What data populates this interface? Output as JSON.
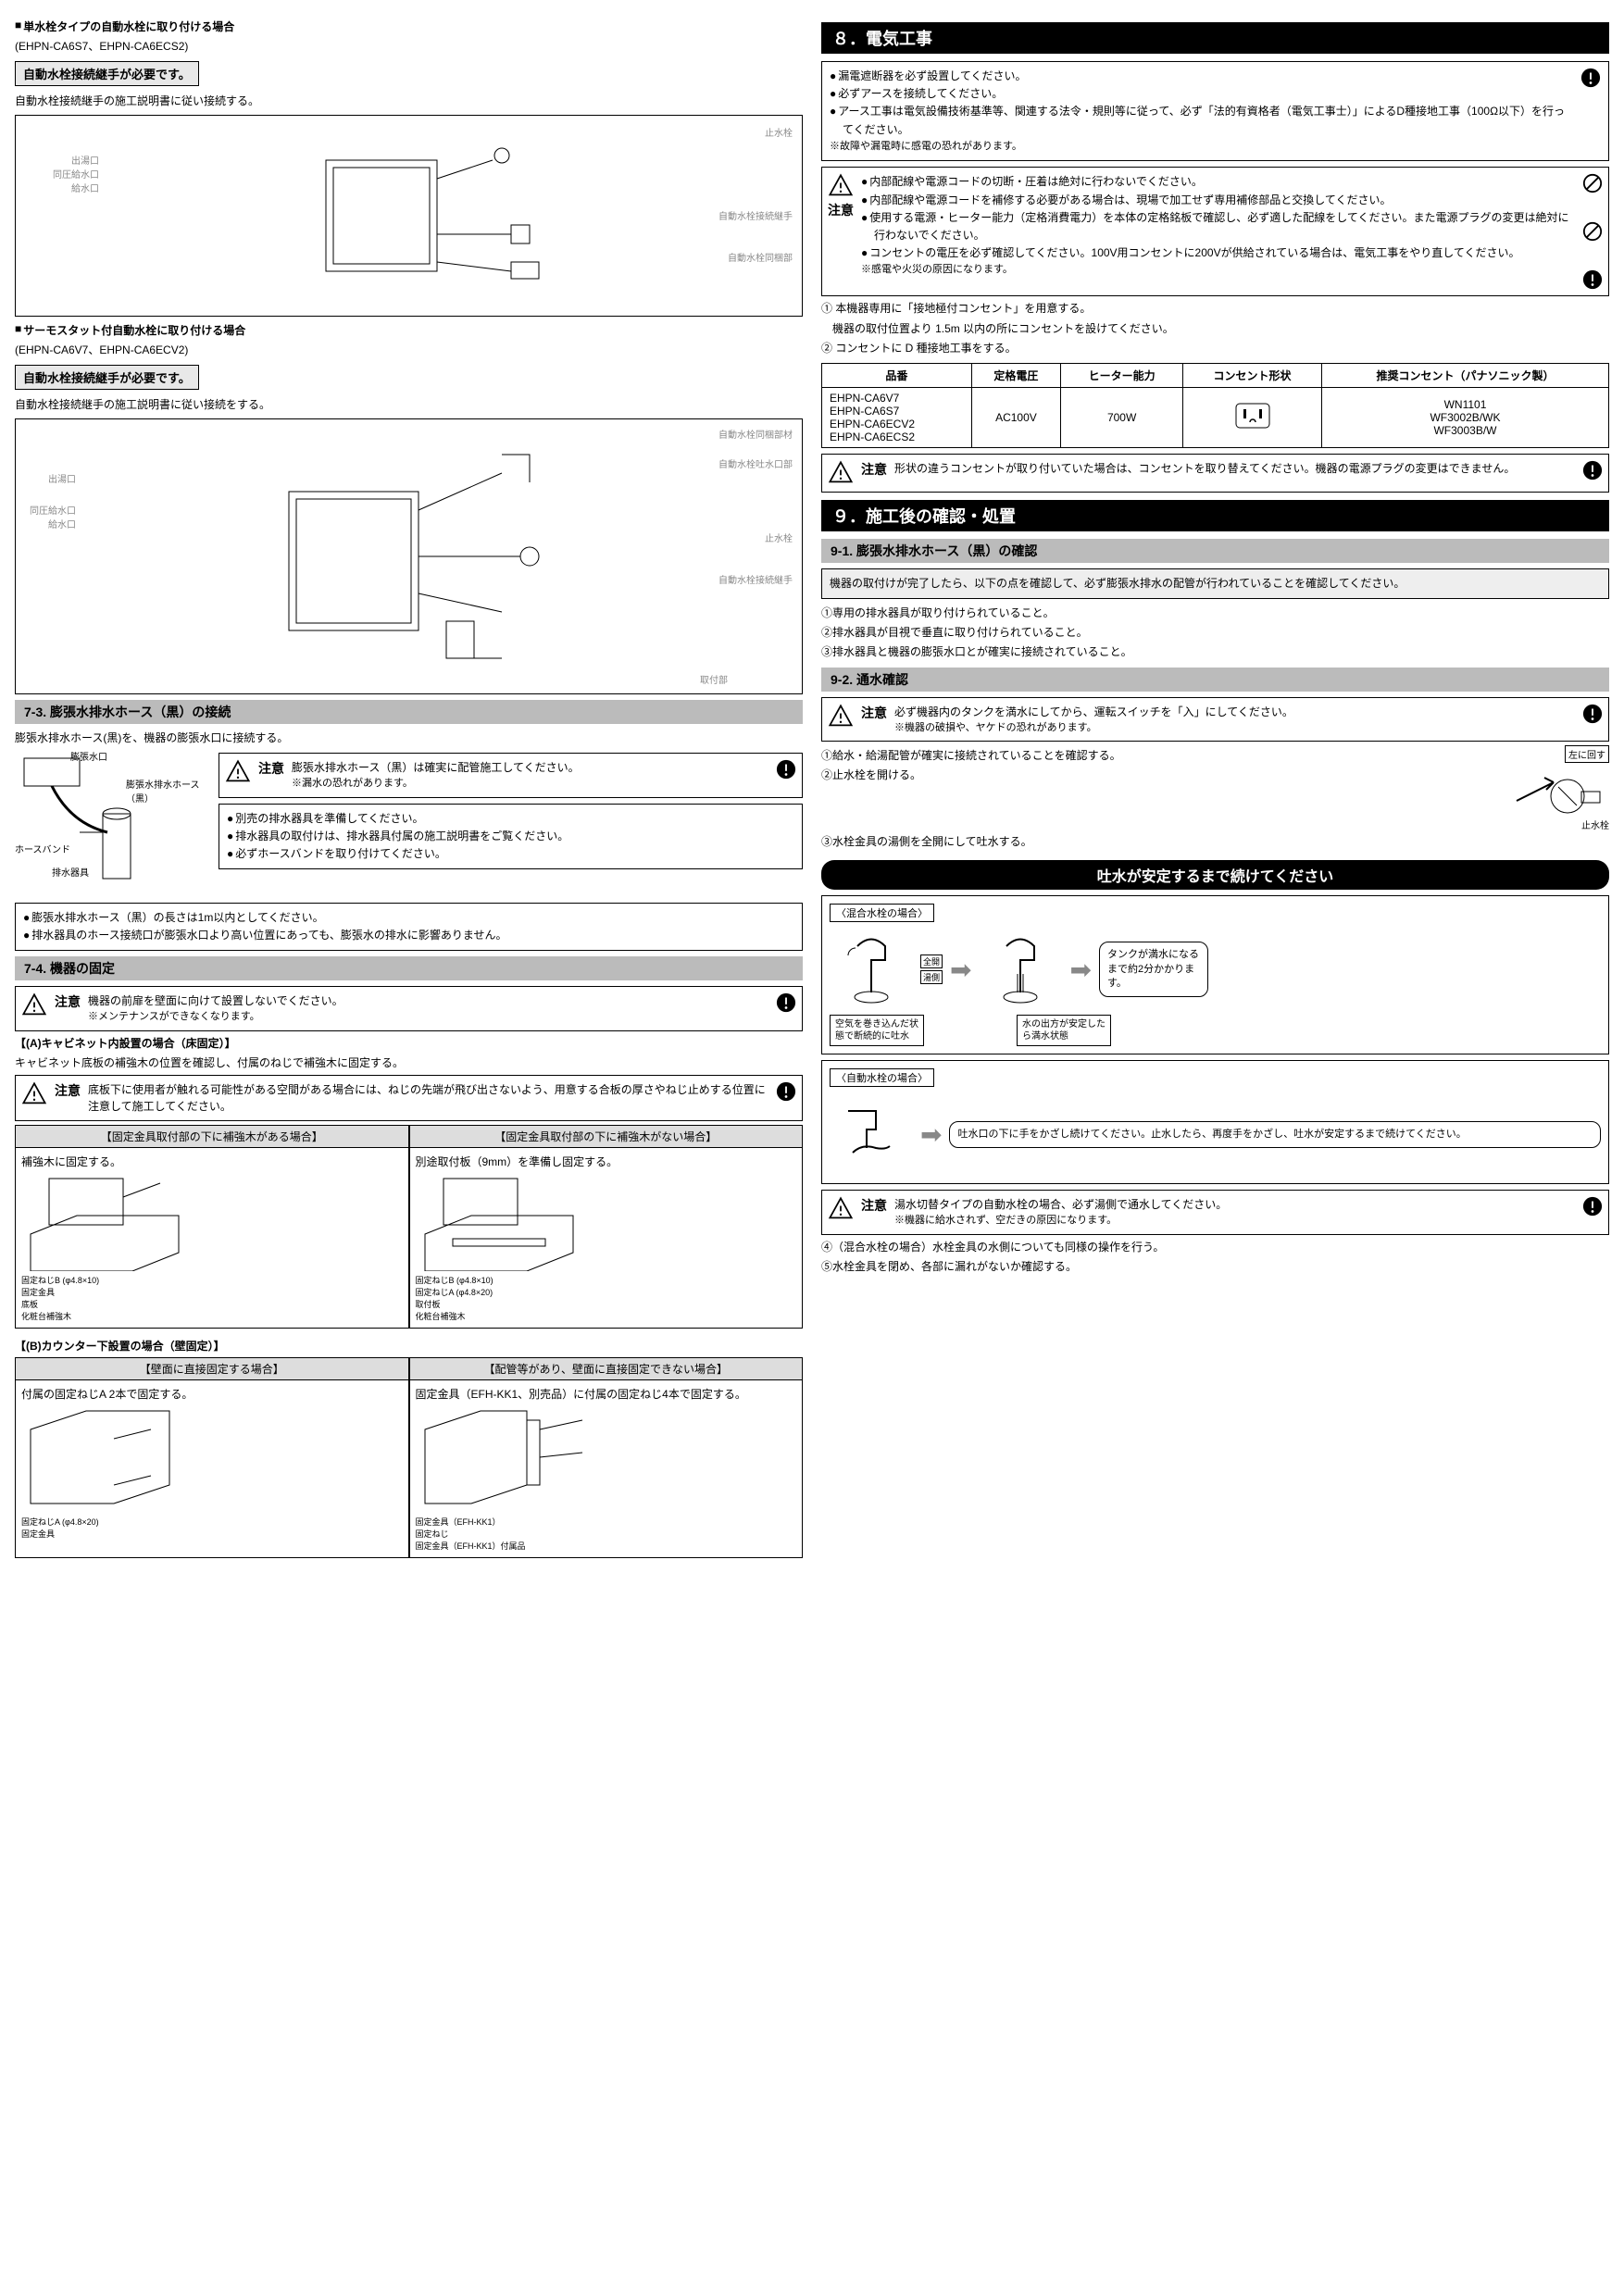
{
  "left": {
    "faucet1_heading": "単水栓タイプの自動水栓に取り付ける場合",
    "faucet1_models": "(EHPN-CA6S7、EHPN-CA6ECS2)",
    "faucet1_req": "自動水栓接続継手が必要です。",
    "faucet1_text": "自動水栓接続継手の施工説明書に従い接続する。",
    "faucet1_labels": {
      "outlet": "出湯口",
      "inlet_both": "同圧給水口",
      "inlet": "給水口",
      "stop": "止水栓",
      "joint": "自動水栓接続継手",
      "faucet_parts": "自動水栓同梱部"
    },
    "faucet2_heading": "サーモスタット付自動水栓に取り付ける場合",
    "faucet2_models": "(EHPN-CA6V7、EHPN-CA6ECV2)",
    "faucet2_req": "自動水栓接続継手が必要です。",
    "faucet2_text": "自動水栓接続継手の施工説明書に従い接続をする。",
    "faucet2_labels": {
      "bundle": "自動水栓同梱部材",
      "hw_outlet": "自動水栓吐水口部",
      "stop": "止水栓",
      "joint": "自動水栓接続継手",
      "outlet": "出湯口",
      "inlet_both": "同圧給水口",
      "inlet": "給水口",
      "attachment": "取付部"
    },
    "sec73_title": "7-3. 膨張水排水ホース（黒）の接続",
    "sec73_text": "膨張水排水ホース(黒)を、機器の膨張水口に接続する。",
    "sec73_labels": {
      "port": "膨張水口",
      "hose": "膨張水排水ホース（黒）",
      "band": "ホースバンド",
      "drain": "排水器具"
    },
    "sec73_caution": "膨張水排水ホース（黒）は確実に配管施工してください。",
    "sec73_caution_sub": "※漏水の恐れがあります。",
    "sec73_bullets": [
      "別売の排水器具を準備してください。",
      "排水器具の取付けは、排水器具付属の施工説明書をご覧ください。",
      "必ずホースバンドを取り付けてください。"
    ],
    "sec73_notes": [
      "膨張水排水ホース（黒）の長さは1m以内としてください。",
      "排水器具のホース接続口が膨張水口より高い位置にあっても、膨張水の排水に影響ありません。"
    ],
    "sec74_title": "7-4. 機器の固定",
    "sec74_caution": "機器の前扉を壁面に向けて設置しないでください。",
    "sec74_caution_sub": "※メンテナンスができなくなります。",
    "caseA_title": "【(A)キャビネット内設置の場合（床固定）】",
    "caseA_text": "キャビネット底板の補強木の位置を確認し、付属のねじで補強木に固定する。",
    "caseA_caution": "底板下に使用者が触れる可能性がある空間がある場合には、ねじの先端が飛び出さないよう、用意する合板の厚さやねじ止めする位置に注意して施工してください。",
    "caseA_left_head": "【固定金具取付部の下に補強木がある場合】",
    "caseA_left_body": "補強木に固定する。",
    "caseA_right_head": "【固定金具取付部の下に補強木がない場合】",
    "caseA_right_body": "別途取付板（9mm）を準備し固定する。",
    "caseA_labels": {
      "screwB": "固定ねじB (φ4.8×10)",
      "bracket": "固定金具",
      "base": "底板",
      "beam": "化粧台補強木",
      "screwA": "固定ねじA (φ4.8×20)",
      "plate": "取付板"
    },
    "caseB_title": "【(B)カウンター下設置の場合（壁固定）】",
    "caseB_left_head": "【壁面に直接固定する場合】",
    "caseB_left_body": "付属の固定ねじA 2本で固定する。",
    "caseB_right_head": "【配管等があり、壁面に直接固定できない場合】",
    "caseB_right_body": "固定金具（EFH-KK1、別売品）に付属の固定ねじ4本で固定する。",
    "caseB_labels": {
      "screwA": "固定ねじA (φ4.8×20)",
      "bracket": "固定金具",
      "kk1": "固定金具（EFH-KK1）",
      "screw": "固定ねじ",
      "kk1p": "固定金具（EFH-KK1）付属品"
    }
  },
  "right": {
    "sec8_title": "８．電気工事",
    "sec8_top_bullets": [
      "漏電遮断器を必ず設置してください。",
      "必ずアースを接続してください。",
      "アース工事は電気設備技術基準等、関連する法令・規則等に従って、必ず「法的有資格者（電気工事士）」によるD種接地工事（100Ω以下）を行ってください。"
    ],
    "sec8_top_sub": "※故障や漏電時に感電の恐れがあります。",
    "sec8_caution_bullets": [
      "内部配線や電源コードの切断・圧着は絶対に行わないでください。",
      "内部配線や電源コードを補修する必要がある場合は、現場で加工せず専用補修部品と交換してください。",
      "使用する電源・ヒーター能力（定格消費電力）を本体の定格銘板で確認し、必ず適した配線をしてください。また電源プラグの変更は絶対に行わないでください。",
      "コンセントの電圧を必ず確認してください。100V用コンセントに200Vが供給されている場合は、電気工事をやり直してください。"
    ],
    "sec8_caution_sub": "※感電や火災の原因になります。",
    "sec8_notes": [
      "① 本機器専用に「接地極付コンセント」を用意する。",
      "　機器の取付位置より 1.5m 以内の所にコンセントを設けてください。",
      "② コンセントに D 種接地工事をする。"
    ],
    "table": {
      "headers": [
        "品番",
        "定格電圧",
        "ヒーター能力",
        "コンセント形状",
        "推奨コンセント（パナソニック製）"
      ],
      "models": [
        "EHPN-CA6V7",
        "EHPN-CA6S7",
        "EHPN-CA6ECV2",
        "EHPN-CA6ECS2"
      ],
      "voltage": "AC100V",
      "heater": "700W",
      "recommended": [
        "WN1101",
        "WF3002B/WK",
        "WF3003B/W"
      ]
    },
    "sec8_caution2": "形状の違うコンセントが取り付いていた場合は、コンセントを取り替えてください。機器の電源プラグの変更はできません。",
    "sec9_title": "９．施工後の確認・処置",
    "sec91_title": "9-1. 膨張水排水ホース（黒）の確認",
    "sec91_intro": "機器の取付けが完了したら、以下の点を確認して、必ず膨張水排水の配管が行われていることを確認してください。",
    "sec91_items": [
      "①専用の排水器具が取り付けられていること。",
      "②排水器具が目視で垂直に取り付けられていること。",
      "③排水器具と機器の膨張水口とが確実に接続されていること。"
    ],
    "sec92_title": "9-2. 通水確認",
    "sec92_caution": "必ず機器内のタンクを満水にしてから、運転スイッチを「入」にしてください。",
    "sec92_caution_sub": "※機器の破損や、ヤケドの恐れがあります。",
    "sec92_items": [
      "①給水・給湯配管が確実に接続されていることを確認する。",
      "②止水栓を開ける。"
    ],
    "sec92_diagram_labels": {
      "ccw": "左に回す",
      "stop": "止水栓"
    },
    "sec92_item3": "③水栓金具の湯側を全開にして吐水する。",
    "banner": "吐水が安定するまで続けてください",
    "mix_title": "〈混合水栓の場合〉",
    "mix_labels": {
      "open": "全開",
      "hot": "湯側",
      "before": "空気を巻き込んだ状態で断続的に吐水",
      "after": "水の出方が安定したら満水状態"
    },
    "mix_note": "タンクが満水になるまで約2分かかります。",
    "auto_title": "〈自動水栓の場合〉",
    "auto_note": "吐水口の下に手をかざし続けてください。止水したら、再度手をかざし、吐水が安定するまで続けてください。",
    "sec92_caution2": "湯水切替タイプの自動水栓の場合、必ず湯側で通水してください。",
    "sec92_caution2_sub": "※機器に給水されず、空だきの原因になります。",
    "sec92_tail": [
      "④（混合水栓の場合）水栓金具の水側についても同様の操作を行う。",
      "⑤水栓金具を閉め、各部に漏れがないか確認する。"
    ]
  },
  "ui": {
    "caution": "注意"
  }
}
